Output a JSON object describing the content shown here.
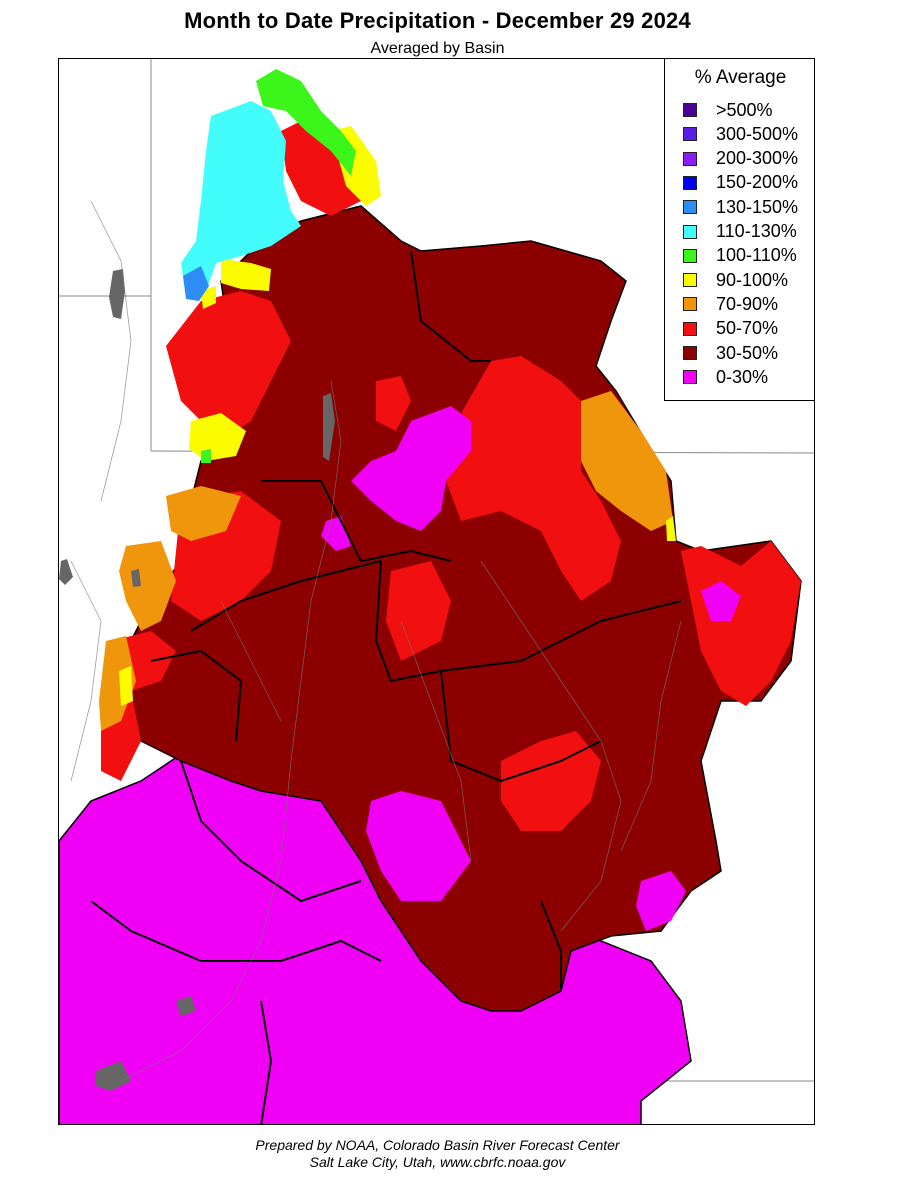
{
  "title": "Month to Date Precipitation - December 29 2024",
  "subtitle": "Averaged by Basin",
  "legend": {
    "title": "% Average",
    "items": [
      {
        "label": ">500%",
        "color": "#4b0096"
      },
      {
        "label": "300-500%",
        "color": "#5a1fe6"
      },
      {
        "label": "200-300%",
        "color": "#8b1cf4"
      },
      {
        "label": "150-200%",
        "color": "#0000f0"
      },
      {
        "label": "130-150%",
        "color": "#2e8df5"
      },
      {
        "label": "110-130%",
        "color": "#43fcfc"
      },
      {
        "label": "100-110%",
        "color": "#3cf51a"
      },
      {
        "label": "90-100%",
        "color": "#fcfc00"
      },
      {
        "label": "70-90%",
        "color": "#f0960d"
      },
      {
        "label": "50-70%",
        "color": "#f20f0f"
      },
      {
        "label": "30-50%",
        "color": "#8c0000"
      },
      {
        "label": "0-30%",
        "color": "#f000f5"
      }
    ]
  },
  "footer": {
    "line1": "Prepared by NOAA, Colorado Basin River Forecast Center",
    "line2": "Salt Lake City, Utah, www.cbrfc.noaa.gov"
  }
}
